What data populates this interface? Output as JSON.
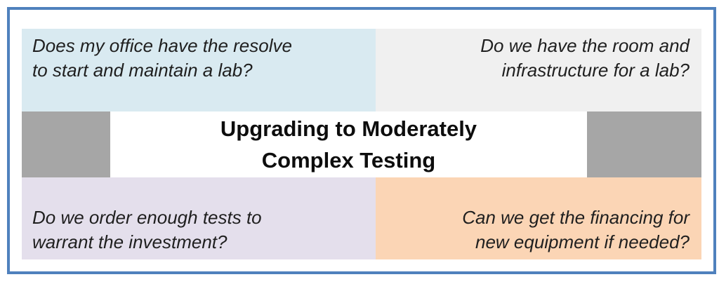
{
  "title": {
    "line1": "Upgrading to Moderately",
    "line2": "Complex Testing"
  },
  "quadrants": {
    "top_left": {
      "line1": "Does my office have the resolve",
      "line2": "to start and maintain a lab?",
      "bg": "#d9eaf1"
    },
    "top_right": {
      "line1": "Do we have the room and",
      "line2": "infrastructure for a lab?",
      "bg": "#f0f0f0"
    },
    "bottom_left": {
      "line1": "Do we order enough tests to",
      "line2": "warrant the investment?",
      "bg": "#e4dfec"
    },
    "bottom_right": {
      "line1": "Can we get the financing for",
      "line2": "new equipment if needed?",
      "bg": "#fbd5b5"
    }
  },
  "colors": {
    "frame_border": "#4f81bd",
    "spacer_gray": "#a6a6a6",
    "question_text": "#1f1f1f",
    "title_text": "#0d0d0d",
    "background": "#ffffff"
  }
}
